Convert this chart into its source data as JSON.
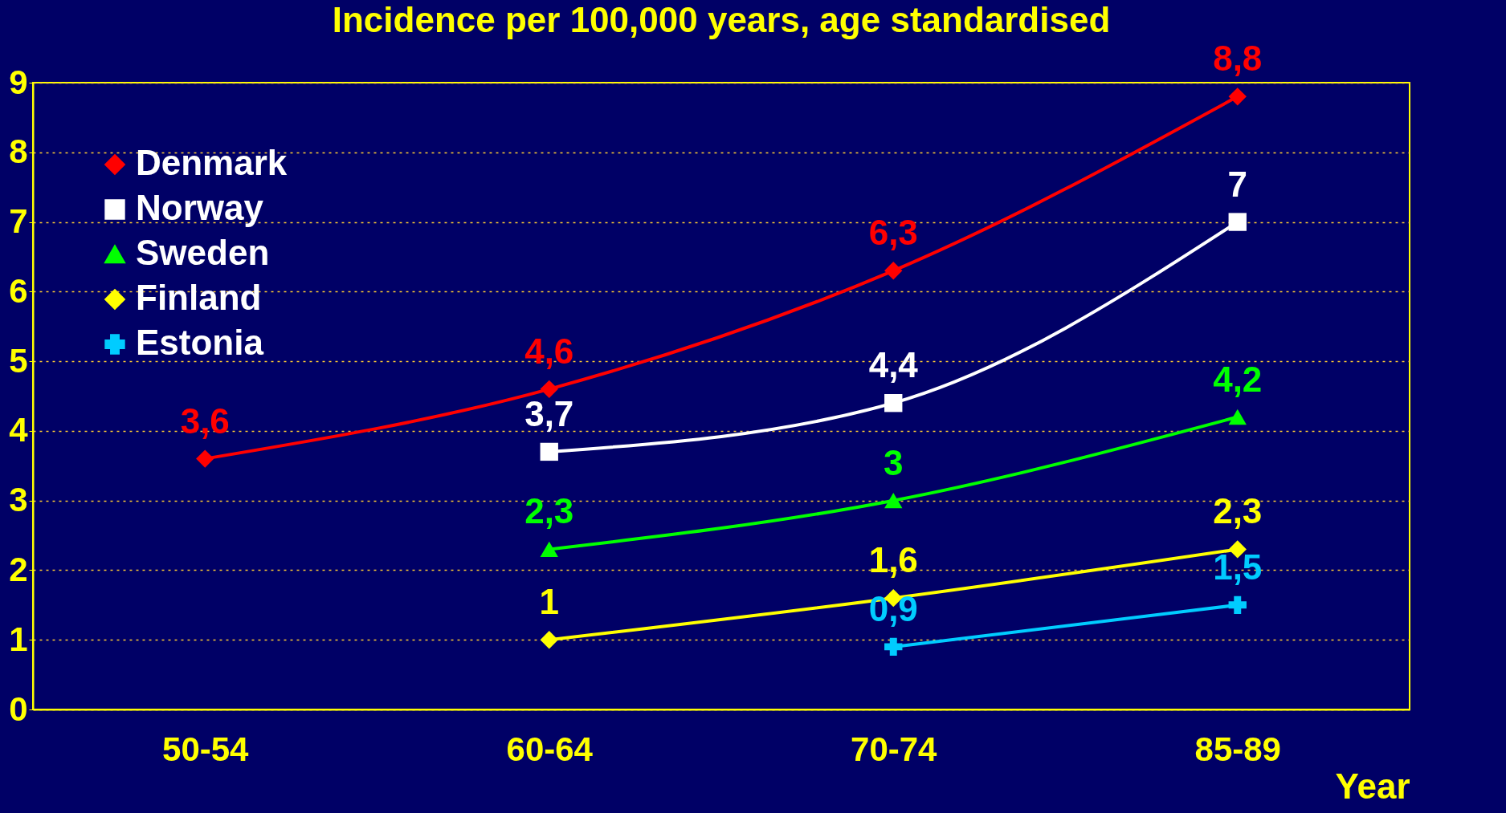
{
  "chart_data": {
    "type": "line",
    "title": "Incidence per 100,000 years, age standardised",
    "xlabel": "Year",
    "categories": [
      "50-54",
      "60-64",
      "70-74",
      "85-89"
    ],
    "series": [
      {
        "name": "Denmark",
        "color": "#ff0000",
        "marker": "diamond",
        "values": [
          3.6,
          4.6,
          6.3,
          8.8
        ],
        "value_labels": [
          "3,6",
          "4,6",
          "6,3",
          "8,8"
        ]
      },
      {
        "name": "Norway",
        "color": "#ffffff",
        "marker": "square",
        "values": [
          null,
          3.7,
          4.4,
          7
        ],
        "value_labels": [
          null,
          "3,7",
          "4,4",
          "7"
        ]
      },
      {
        "name": "Sweden",
        "color": "#00ff00",
        "marker": "triangle",
        "values": [
          null,
          2.3,
          3,
          4.2
        ],
        "value_labels": [
          null,
          "2,3",
          "3",
          "4,2"
        ]
      },
      {
        "name": "Finland",
        "color": "#ffff00",
        "marker": "diamond",
        "values": [
          null,
          1,
          1.6,
          2.3
        ],
        "value_labels": [
          null,
          "1",
          "1,6",
          "2,3"
        ]
      },
      {
        "name": "Estonia",
        "color": "#00ccff",
        "marker": "cross",
        "values": [
          null,
          null,
          0.9,
          1.5
        ],
        "value_labels": [
          null,
          null,
          "0,9",
          "1,5"
        ]
      }
    ],
    "ylim": [
      0,
      9
    ],
    "yticks": [
      0,
      1,
      2,
      3,
      4,
      5,
      6,
      7,
      8,
      9
    ],
    "grid": "y",
    "legend": "top left",
    "line_style": "solid"
  }
}
